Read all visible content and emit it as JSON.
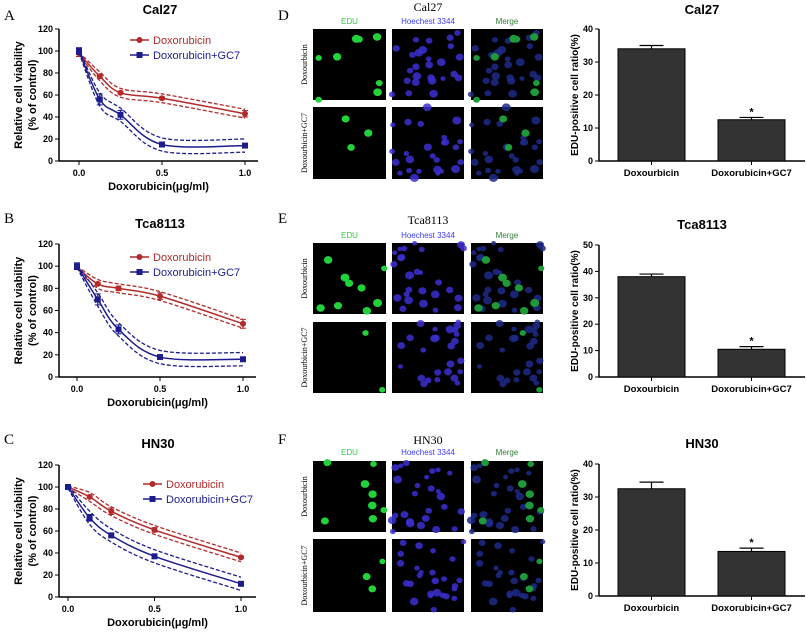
{
  "panel_letters": [
    "A",
    "B",
    "C",
    "D",
    "E",
    "F"
  ],
  "colors": {
    "doxorubicin": "#b22a2a",
    "doxorubicin_gc7": "#1c1c8c",
    "bar": "#333333",
    "edu": "#2ecc40",
    "hoechst": "#3a3aff",
    "merge": "#2e7d32"
  },
  "microscopy": [
    {
      "title": "Cal27",
      "columns": [
        "EDU",
        "Hoechest 3344",
        "Merge"
      ],
      "rows": [
        "Doxourbicin",
        "Doxourbicin+GC7"
      ]
    },
    {
      "title": "Tca8113",
      "columns": [
        "EDU",
        "Hoechest 3344",
        "Merge"
      ],
      "rows": [
        "Doxourbicin",
        "Doxourbicin+GC7"
      ]
    },
    {
      "title": "HN30",
      "columns": [
        "EDU",
        "Hoechest 3344",
        "Merge"
      ],
      "rows": [
        "Doxourbicin",
        "Doxourbicin+GC7"
      ]
    }
  ],
  "chart_data": [
    {
      "type": "line",
      "title": "Cal27",
      "xlabel": "Doxorubicin(μg/ml)",
      "ylabel": [
        "Relative cell viability",
        "(% of control)"
      ],
      "xlim": [
        0,
        1
      ],
      "ylim": [
        0,
        120
      ],
      "xticks": [
        "0.0",
        "0.5",
        "1.0"
      ],
      "xtick_values": [
        0,
        0.5,
        1
      ],
      "yticks": [
        0,
        20,
        40,
        60,
        80,
        100,
        120
      ],
      "legend": "top-right",
      "grid": false,
      "x": [
        0,
        0.125,
        0.25,
        0.5,
        1
      ],
      "series": [
        {
          "name": "Doxorubicin",
          "marker": "circle",
          "values": [
            98,
            77,
            62,
            57,
            43
          ],
          "errors": [
            3,
            1,
            1,
            1,
            3
          ]
        },
        {
          "name": "Doxorubicin+GC7",
          "marker": "square",
          "values": [
            100,
            56,
            42,
            15,
            14
          ],
          "errors": [
            3,
            5,
            4,
            1,
            1
          ]
        }
      ]
    },
    {
      "type": "line",
      "title": "Tca8113",
      "xlabel": "Doxorubicin(μg/ml)",
      "ylabel": [
        "Relative cell viability",
        "(% of control)"
      ],
      "xlim": [
        0,
        1
      ],
      "ylim": [
        0,
        120
      ],
      "xticks": [
        "0.0",
        "0.5",
        "1.0"
      ],
      "xtick_values": [
        0,
        0.5,
        1
      ],
      "yticks": [
        0,
        20,
        40,
        60,
        80,
        100,
        120
      ],
      "legend": "top-right",
      "grid": false,
      "x": [
        0,
        0.125,
        0.25,
        0.5,
        1
      ],
      "series": [
        {
          "name": "Doxorubicin",
          "marker": "circle",
          "values": [
            99,
            84,
            80,
            73,
            48
          ],
          "errors": [
            2,
            1,
            2,
            3,
            4
          ]
        },
        {
          "name": "Doxorubicin+GC7",
          "marker": "square",
          "values": [
            100,
            70,
            43,
            18,
            16
          ],
          "errors": [
            3,
            5,
            4,
            1,
            1
          ]
        }
      ]
    },
    {
      "type": "line",
      "title": "HN30",
      "xlabel": "Doxorubicin(μg/ml)",
      "ylabel": [
        "Relative cell viability",
        "(% of control)"
      ],
      "xlim": [
        0,
        1
      ],
      "ylim": [
        0,
        120
      ],
      "xticks": [
        "0.0",
        "0.5",
        "1.0"
      ],
      "xtick_values": [
        0,
        0.5,
        1
      ],
      "yticks": [
        0,
        20,
        40,
        60,
        80,
        100,
        120
      ],
      "legend": "top-right",
      "grid": false,
      "x": [
        0,
        0.125,
        0.25,
        0.5,
        1
      ],
      "series": [
        {
          "name": "Doxorubicin",
          "marker": "circle",
          "values": [
            100,
            91,
            78,
            61,
            36
          ],
          "errors": [
            1,
            1,
            3,
            2,
            1
          ]
        },
        {
          "name": "Doxorubicin+GC7",
          "marker": "square",
          "values": [
            100,
            72,
            56,
            37,
            12
          ],
          "errors": [
            1,
            3,
            2,
            1,
            1
          ]
        }
      ]
    },
    {
      "type": "bar",
      "title": "Cal27",
      "ylabel": "EDU-positive cell ratio(%)",
      "categories": [
        "Doxourbicin",
        "Doxorubicin+GC7"
      ],
      "values": [
        34,
        12.5
      ],
      "errors": [
        1,
        0.7
      ],
      "annotations": [
        "",
        "*"
      ],
      "ylim": [
        0,
        40
      ],
      "yticks": [
        0,
        10,
        20,
        30,
        40
      ]
    },
    {
      "type": "bar",
      "title": "Tca8113",
      "ylabel": "EDU-positive cell ratio(%)",
      "categories": [
        "Doxourbicin",
        "Doxorubicin+GC7"
      ],
      "values": [
        38,
        10.5
      ],
      "errors": [
        1,
        1
      ],
      "annotations": [
        "",
        "*"
      ],
      "ylim": [
        0,
        50
      ],
      "yticks": [
        0,
        10,
        20,
        30,
        40,
        50
      ]
    },
    {
      "type": "bar",
      "title": "HN30",
      "ylabel": "EDU-positive cell ratio(%)",
      "categories": [
        "Doxourbicin",
        "Doxorubicin+GC7"
      ],
      "values": [
        32.5,
        13.5
      ],
      "errors": [
        2,
        1
      ],
      "annotations": [
        "",
        "*"
      ],
      "ylim": [
        0,
        40
      ],
      "yticks": [
        0,
        10,
        20,
        30,
        40
      ]
    }
  ]
}
